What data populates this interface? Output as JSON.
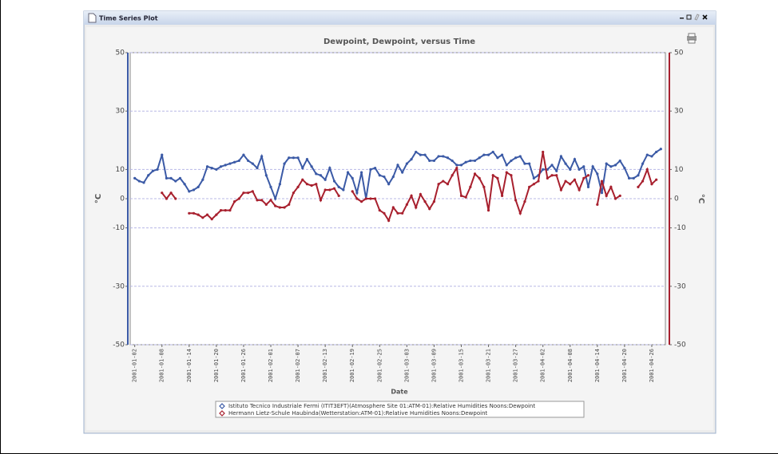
{
  "window": {
    "title": "Time Series Plot"
  },
  "chart_data": {
    "type": "line",
    "title": "Dewpoint, Dewpoint, versus Time",
    "x_label": "Date",
    "y_label": "°C",
    "y2_label": "°C",
    "x": [
      "2001-01-02",
      "2001-01-03",
      "2001-01-04",
      "2001-01-05",
      "2001-01-06",
      "2001-01-07",
      "2001-01-08",
      "2001-01-09",
      "2001-01-10",
      "2001-01-11",
      "2001-01-12",
      "2001-01-13",
      "2001-01-14",
      "2001-01-15",
      "2001-01-16",
      "2001-01-17",
      "2001-01-18",
      "2001-01-19",
      "2001-01-20",
      "2001-01-21",
      "2001-01-22",
      "2001-01-23",
      "2001-01-24",
      "2001-01-25",
      "2001-01-26",
      "2001-01-27",
      "2001-01-28",
      "2001-01-29",
      "2001-01-30",
      "2001-01-31",
      "2001-02-01",
      "2001-02-02",
      "2001-02-03",
      "2001-02-04",
      "2001-02-05",
      "2001-02-06",
      "2001-02-07",
      "2001-02-08",
      "2001-02-09",
      "2001-02-10",
      "2001-02-11",
      "2001-02-12",
      "2001-02-13",
      "2001-02-14",
      "2001-02-15",
      "2001-02-16",
      "2001-02-17",
      "2001-02-18",
      "2001-02-19",
      "2001-02-20",
      "2001-02-21",
      "2001-02-22",
      "2001-02-23",
      "2001-02-24",
      "2001-02-25",
      "2001-02-26",
      "2001-02-27",
      "2001-02-28",
      "2001-03-01",
      "2001-03-02",
      "2001-03-03",
      "2001-03-04",
      "2001-03-05",
      "2001-03-06",
      "2001-03-07",
      "2001-03-08",
      "2001-03-09",
      "2001-03-10",
      "2001-03-11",
      "2001-03-12",
      "2001-03-13",
      "2001-03-14",
      "2001-03-15",
      "2001-03-16",
      "2001-03-17",
      "2001-03-18",
      "2001-03-19",
      "2001-03-20",
      "2001-03-21",
      "2001-03-22",
      "2001-03-23",
      "2001-03-24",
      "2001-03-25",
      "2001-03-26",
      "2001-03-27",
      "2001-03-28",
      "2001-03-29",
      "2001-03-30",
      "2001-03-31",
      "2001-04-01",
      "2001-04-02",
      "2001-04-03",
      "2001-04-04",
      "2001-04-05",
      "2001-04-06",
      "2001-04-07",
      "2001-04-08",
      "2001-04-09",
      "2001-04-10",
      "2001-04-11",
      "2001-04-12",
      "2001-04-13",
      "2001-04-14",
      "2001-04-15",
      "2001-04-16",
      "2001-04-17",
      "2001-04-18",
      "2001-04-19",
      "2001-04-20",
      "2001-04-21",
      "2001-04-22",
      "2001-04-23",
      "2001-04-24",
      "2001-04-25",
      "2001-04-26",
      "2001-04-27",
      "2001-04-28"
    ],
    "series": [
      {
        "name": "Istituto Tecnico Industriale Fermi (ITIT3EFT)(Atmosphere Site 01:ATM-01):Relative Humidities Noons:Dewpoint",
        "color": "#3b5aa6",
        "values": [
          7,
          6,
          5.5,
          8,
          9.5,
          10,
          15,
          7,
          7,
          6,
          7,
          5,
          2.5,
          3,
          4,
          6.5,
          11,
          10.5,
          10,
          11,
          11.5,
          12,
          12.5,
          13,
          15,
          13,
          12,
          10.5,
          14.5,
          8,
          4,
          0,
          5,
          12,
          14,
          14,
          14,
          10.5,
          13.5,
          11,
          8.5,
          8,
          6.5,
          10.5,
          6,
          4,
          3,
          9,
          7,
          2,
          9,
          0,
          10,
          10.5,
          8,
          7.5,
          5,
          7.5,
          11.5,
          9,
          12,
          13.5,
          16,
          15,
          15,
          13,
          13,
          14.5,
          14.5,
          14,
          13,
          11.5,
          11.5,
          12.5,
          13,
          13,
          14,
          15,
          15,
          16,
          14,
          15,
          11.5,
          13,
          14,
          14.5,
          12,
          12,
          7,
          8,
          10,
          10,
          11.5,
          9.5,
          14.5,
          12,
          10,
          13.5,
          10,
          11,
          4,
          11,
          8.5,
          2,
          12,
          11,
          11.5,
          13,
          10.5,
          7,
          7,
          8,
          12,
          15,
          14.5,
          16,
          17
        ]
      },
      {
        "name": "Hermann Lietz-Schule Haubinda(Wetterstation:ATM-01):Relative Humidities Noons:Dewpoint",
        "color": "#a8202e",
        "axis": "y2",
        "values": [
          null,
          null,
          null,
          null,
          null,
          null,
          2,
          0,
          2,
          0,
          null,
          null,
          -5,
          -5,
          -5.5,
          -6.5,
          -5.5,
          -7,
          -5.5,
          -4,
          -4,
          -4,
          -1,
          0,
          2,
          2,
          2.5,
          -0.5,
          -0.5,
          -2,
          -0.5,
          -2.5,
          -3,
          -3,
          -2,
          2,
          4,
          6.5,
          5,
          4.5,
          5,
          -0.5,
          3,
          3,
          3.5,
          1,
          null,
          null,
          2.5,
          0,
          -1,
          0,
          0,
          0,
          -4,
          -5,
          -7.5,
          -3,
          -5,
          -5,
          -2,
          1,
          -3,
          1.5,
          -1,
          -3.5,
          -1,
          5,
          6,
          5,
          8,
          10.5,
          1,
          0.5,
          4,
          8.5,
          7,
          4,
          -4,
          8,
          7,
          1,
          9,
          8,
          -0.5,
          -5,
          -1,
          4,
          5,
          6,
          16,
          7,
          8,
          8,
          3,
          6,
          5,
          6.5,
          3,
          7,
          8,
          null,
          -2,
          6,
          1,
          4,
          0,
          1,
          null,
          null,
          null,
          4,
          6,
          10,
          5,
          6.5,
          null
        ]
      }
    ],
    "xlim": [
      "2001-01-01",
      "2001-04-29"
    ],
    "xticks": [
      "2001-01-02",
      "2001-01-08",
      "2001-01-14",
      "2001-01-20",
      "2001-01-26",
      "2001-02-01",
      "2001-02-07",
      "2001-02-13",
      "2001-02-19",
      "2001-02-25",
      "2001-03-03",
      "2001-03-09",
      "2001-03-15",
      "2001-03-21",
      "2001-03-27",
      "2001-04-02",
      "2001-04-08",
      "2001-04-14",
      "2001-04-20",
      "2001-04-26"
    ],
    "ylim": [
      -50,
      50
    ],
    "yticks": [
      -50,
      -30,
      -10,
      0,
      10,
      30,
      50
    ],
    "y2lim": [
      -50,
      50
    ],
    "y2ticks": [
      -50,
      -30,
      -10,
      0,
      10,
      30,
      50
    ],
    "grid": true
  }
}
